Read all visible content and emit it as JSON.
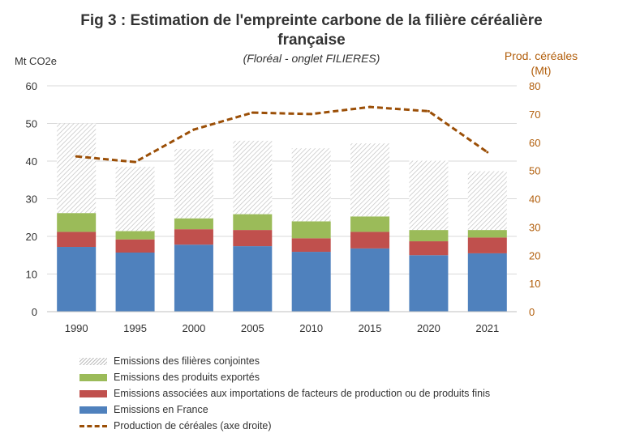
{
  "title_line1": "Fig 3 : Estimation de l'empreinte carbone de la filière céréalière",
  "title_line2": "française",
  "subtitle": "(Floréal - onglet FILIERES)",
  "ylabel_left": "Mt CO2e",
  "ylabel_right_line1": "Prod. céréales",
  "ylabel_right_line2": "(Mt)",
  "colors": {
    "france": "#4f81bd",
    "imports": "#c0504d",
    "exports": "#9bbb59",
    "conjointes": "#bdbdbd",
    "production": "#9b4f07",
    "right_axis": "#b15d0a"
  },
  "chart_data": {
    "type": "bar",
    "stacked": true,
    "categories": [
      "1990",
      "1995",
      "2000",
      "2005",
      "2010",
      "2015",
      "2020",
      "2021"
    ],
    "ylim": [
      0,
      60
    ],
    "yticks": [
      0,
      10,
      20,
      30,
      40,
      50,
      60
    ],
    "y2lim": [
      0,
      80
    ],
    "y2ticks": [
      0,
      10,
      20,
      30,
      40,
      50,
      60,
      70,
      80
    ],
    "grid": true,
    "legend_position": "bottom",
    "series": [
      {
        "name": "Emissions en France",
        "axis": "left",
        "kind": "bar",
        "values": [
          17.2,
          15.7,
          17.8,
          17.4,
          15.9,
          16.8,
          15.0,
          15.5
        ]
      },
      {
        "name": "Emissions associées aux importations de facteurs de production ou de produits finis",
        "axis": "left",
        "kind": "bar",
        "values": [
          4.0,
          3.5,
          4.1,
          4.3,
          3.6,
          4.4,
          3.7,
          4.2
        ]
      },
      {
        "name": "Emissions des produits exportés",
        "axis": "left",
        "kind": "bar",
        "values": [
          5.0,
          2.2,
          2.9,
          4.2,
          4.5,
          4.1,
          3.0,
          2.0
        ]
      },
      {
        "name": "Emissions des filières conjointes",
        "axis": "left",
        "kind": "bar",
        "values": [
          23.8,
          17.1,
          18.4,
          19.5,
          19.4,
          19.4,
          18.4,
          15.6
        ]
      },
      {
        "name": "Production de céréales (axe droite)",
        "axis": "right",
        "kind": "line",
        "values": [
          55.0,
          53.0,
          64.5,
          70.5,
          70.0,
          72.5,
          71.0,
          56.5
        ]
      }
    ]
  }
}
